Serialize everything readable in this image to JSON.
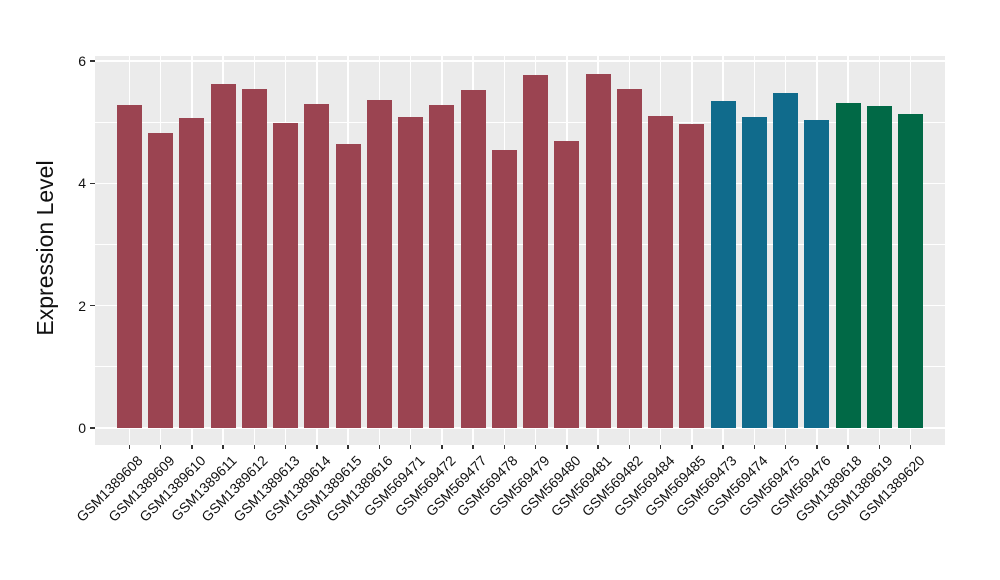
{
  "chart_data": {
    "type": "bar",
    "title": "",
    "xlabel": "",
    "ylabel": "Expression Level",
    "ylim": [
      0,
      6.08
    ],
    "yticks": [
      0,
      2,
      4,
      6
    ],
    "yticks_minor": [
      1,
      3,
      5
    ],
    "layout": {
      "legend": "none",
      "grid": "white major and minor lines on gray panel",
      "panel_bg": "#EBEBEB",
      "grid_color": "#FFFFFF",
      "x_label_rotation_deg": 45
    },
    "group_colors": {
      "maroon": "#9B4451",
      "teal": "#106B8C",
      "green": "#016946"
    },
    "bars": [
      {
        "label": "GSM1389608",
        "value": 5.28,
        "group": "maroon"
      },
      {
        "label": "GSM1389609",
        "value": 4.83,
        "group": "maroon"
      },
      {
        "label": "GSM1389610",
        "value": 5.06,
        "group": "maroon"
      },
      {
        "label": "GSM1389611",
        "value": 5.62,
        "group": "maroon"
      },
      {
        "label": "GSM1389612",
        "value": 5.54,
        "group": "maroon"
      },
      {
        "label": "GSM1389613",
        "value": 4.99,
        "group": "maroon"
      },
      {
        "label": "GSM1389614",
        "value": 5.29,
        "group": "maroon"
      },
      {
        "label": "GSM1389615",
        "value": 4.64,
        "group": "maroon"
      },
      {
        "label": "GSM1389616",
        "value": 5.36,
        "group": "maroon"
      },
      {
        "label": "GSM569471",
        "value": 5.08,
        "group": "maroon"
      },
      {
        "label": "GSM569472",
        "value": 5.28,
        "group": "maroon"
      },
      {
        "label": "GSM569477",
        "value": 5.53,
        "group": "maroon"
      },
      {
        "label": "GSM569478",
        "value": 4.54,
        "group": "maroon"
      },
      {
        "label": "GSM569479",
        "value": 5.77,
        "group": "maroon"
      },
      {
        "label": "GSM569480",
        "value": 4.69,
        "group": "maroon"
      },
      {
        "label": "GSM569481",
        "value": 5.79,
        "group": "maroon"
      },
      {
        "label": "GSM569482",
        "value": 5.54,
        "group": "maroon"
      },
      {
        "label": "GSM569484",
        "value": 5.1,
        "group": "maroon"
      },
      {
        "label": "GSM569485",
        "value": 4.97,
        "group": "maroon"
      },
      {
        "label": "GSM569473",
        "value": 5.35,
        "group": "teal"
      },
      {
        "label": "GSM569474",
        "value": 5.08,
        "group": "teal"
      },
      {
        "label": "GSM569475",
        "value": 5.48,
        "group": "teal"
      },
      {
        "label": "GSM569476",
        "value": 5.03,
        "group": "teal"
      },
      {
        "label": "GSM1389618",
        "value": 5.31,
        "group": "green"
      },
      {
        "label": "GSM1389619",
        "value": 5.26,
        "group": "green"
      },
      {
        "label": "GSM1389620",
        "value": 5.14,
        "group": "green"
      }
    ]
  }
}
